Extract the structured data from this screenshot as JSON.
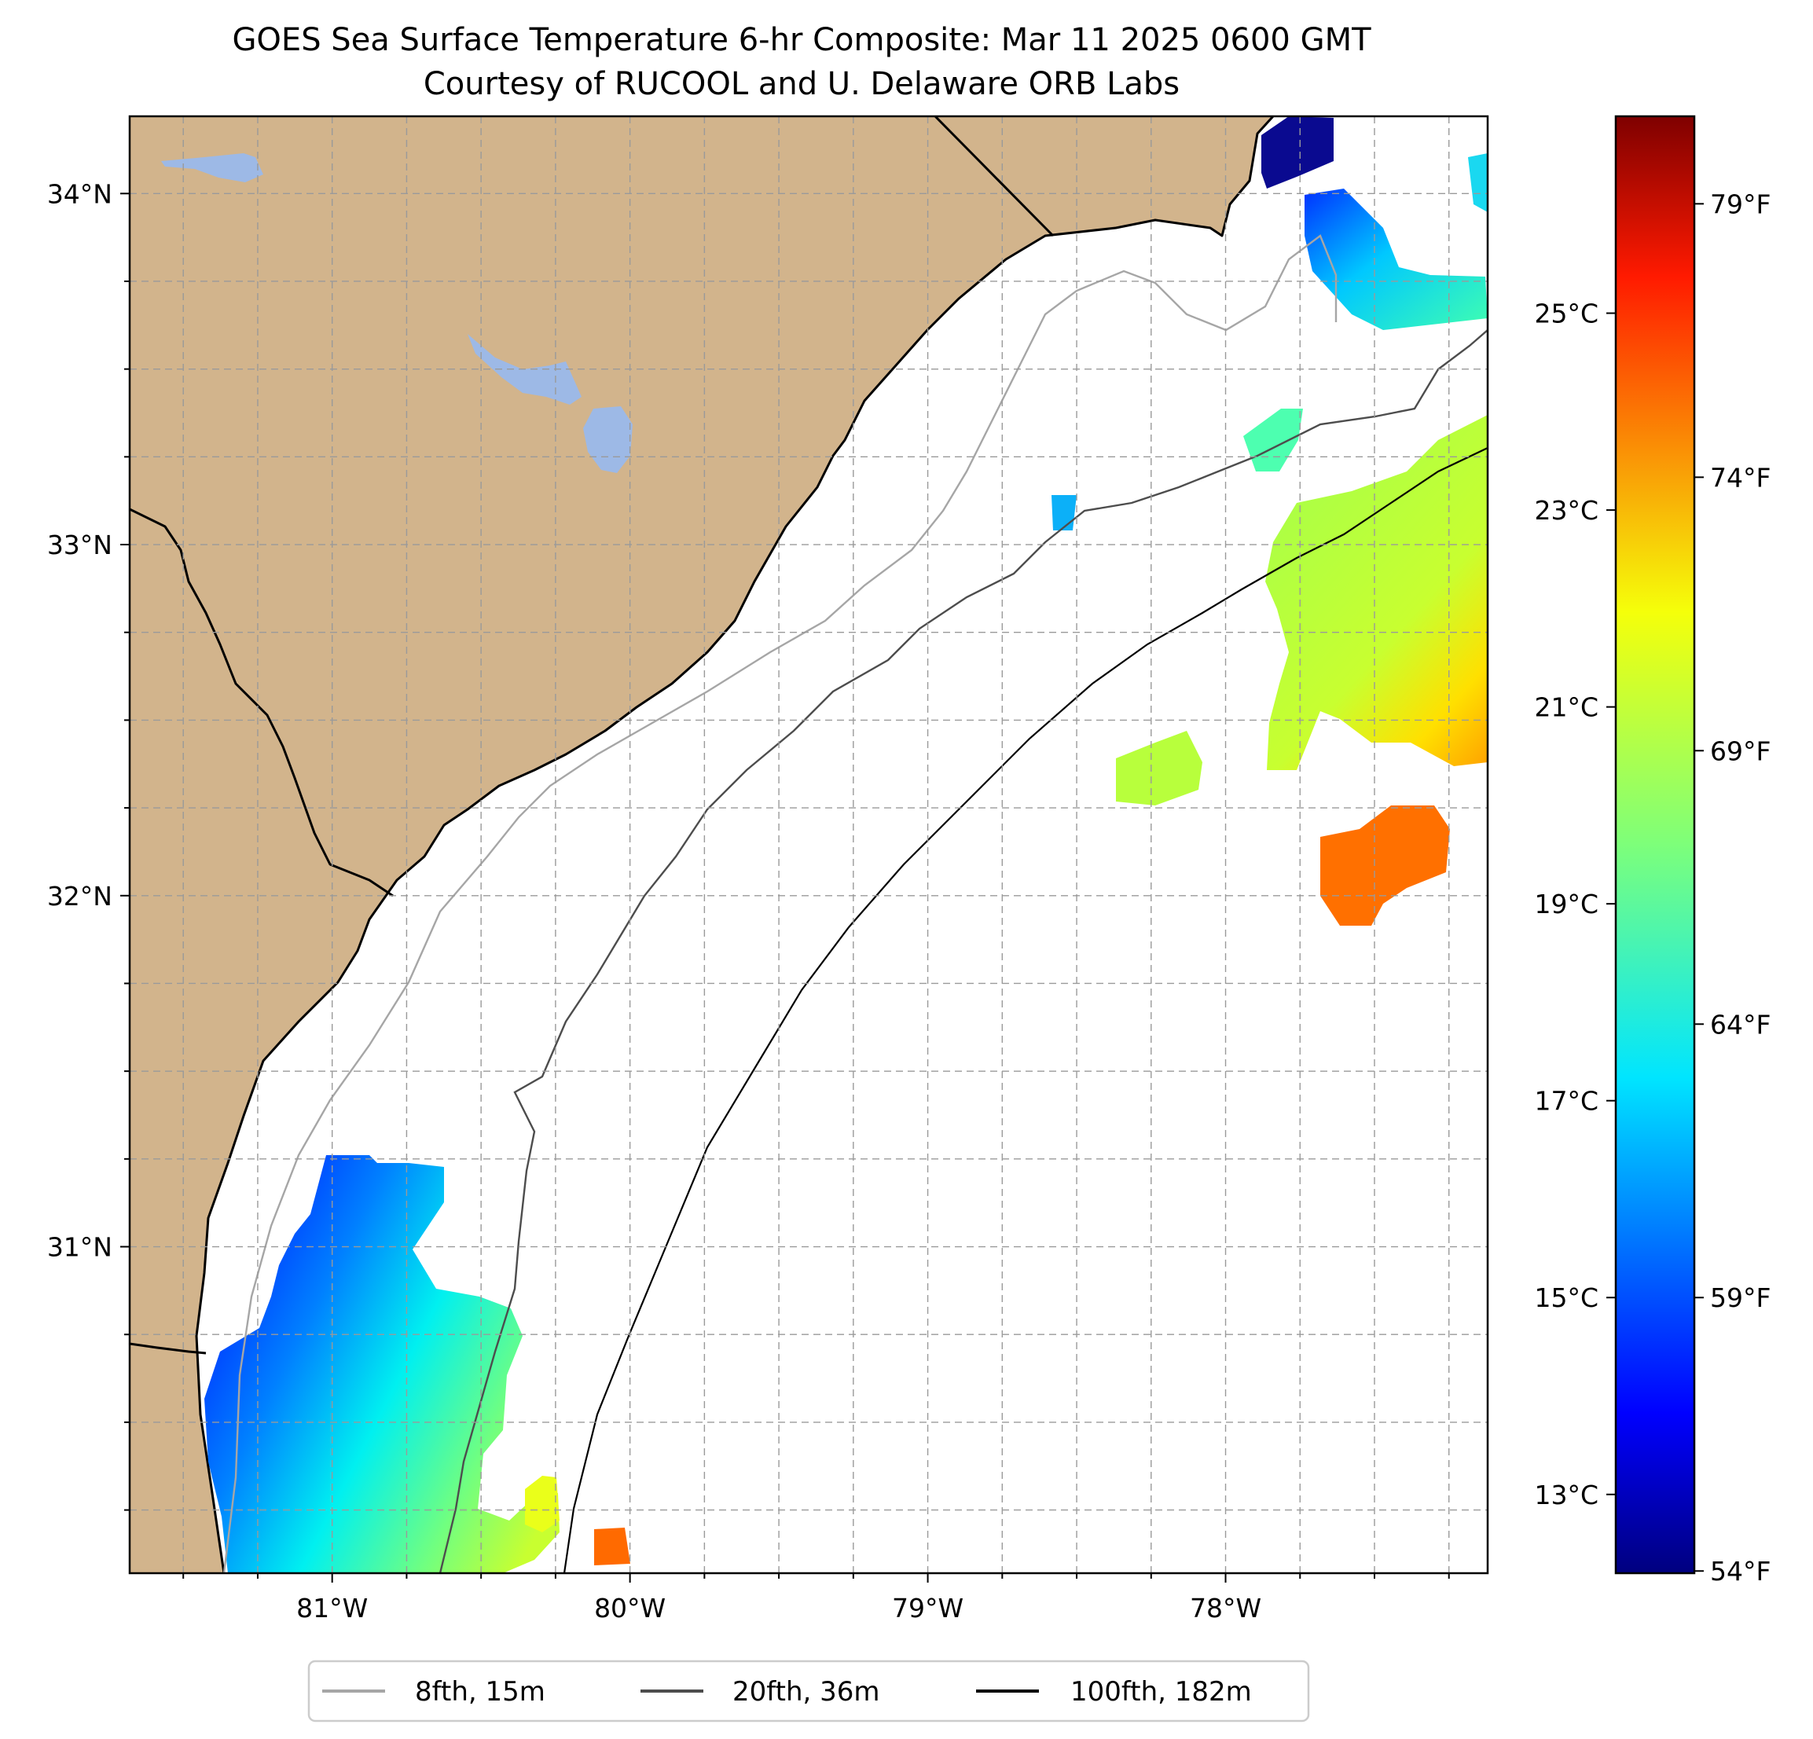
{
  "figure": {
    "title_line1": "GOES Sea Surface Temperature 6-hr Composite: Mar 11 2025 0600 GMT",
    "title_line2": "Courtesy of RUCOOL and U. Delaware ORB Labs"
  },
  "colors": {
    "land": "#d2b48c",
    "lake": "#9db9e6",
    "ocean": "#ffffff",
    "contour_8fth": "#a6a6a6",
    "contour_20fth": "#4d4d4d",
    "contour_100fth": "#000000",
    "colormap": "jet"
  },
  "map": {
    "lon_range": [
      -81.68,
      -77.12
    ],
    "lat_range": [
      30.07,
      34.22
    ],
    "lat_ticks": [
      {
        "value": 34,
        "label": "34°N"
      },
      {
        "value": 33,
        "label": "33°N"
      },
      {
        "value": 32,
        "label": "32°N"
      },
      {
        "value": 31,
        "label": "31°N"
      }
    ],
    "lon_ticks": [
      {
        "value": -81,
        "label": "81°W"
      },
      {
        "value": -80,
        "label": "80°W"
      },
      {
        "value": -79,
        "label": "79°W"
      },
      {
        "value": -78,
        "label": "78°W"
      }
    ],
    "gridlines": true,
    "gridline_spacing_deg": 0.25
  },
  "colorbar": {
    "range_c": [
      12.2,
      27.0
    ],
    "celsius_ticks": [
      {
        "value": 13,
        "label": "13°C"
      },
      {
        "value": 15,
        "label": "15°C"
      },
      {
        "value": 17,
        "label": "17°C"
      },
      {
        "value": 19,
        "label": "19°C"
      },
      {
        "value": 21,
        "label": "21°C"
      },
      {
        "value": 23,
        "label": "23°C"
      },
      {
        "value": 25,
        "label": "25°C"
      }
    ],
    "fahrenheit_ticks": [
      {
        "value": 54,
        "label": "54°F"
      },
      {
        "value": 59,
        "label": "59°F"
      },
      {
        "value": 64,
        "label": "64°F"
      },
      {
        "value": 69,
        "label": "69°F"
      },
      {
        "value": 74,
        "label": "74°F"
      },
      {
        "value": 79,
        "label": "79°F"
      }
    ]
  },
  "legend": {
    "placement": "bottom-center",
    "entries": [
      {
        "label": "8fth, 15m",
        "color": "#a6a6a6"
      },
      {
        "label": "20fth, 36m",
        "color": "#4d4d4d"
      },
      {
        "label": "100fth, 182m",
        "color": "#000000"
      }
    ]
  }
}
